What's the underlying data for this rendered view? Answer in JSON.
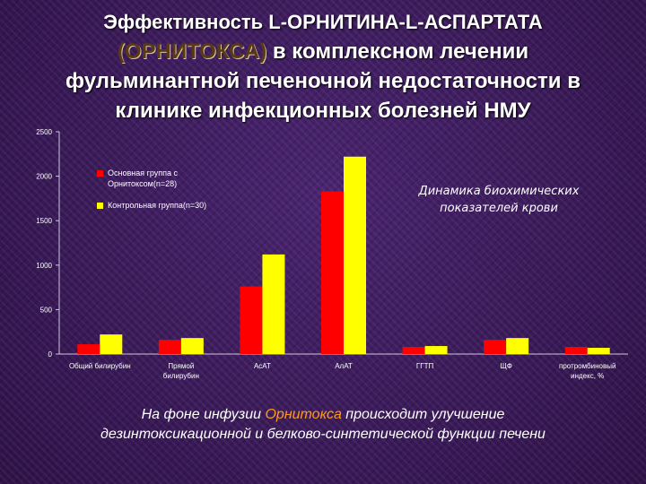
{
  "title": {
    "line1_a": "Эффективность ",
    "line1_b": "L-ОРНИТИНА-L-АСПАРТАТА",
    "line2_highlight": "(ОРНИТОКСА)",
    "line2_rest": " в комплексном лечении",
    "line3": "фульминантной печеночной недостаточности в",
    "line4": "клинике инфекционных болезней НМУ"
  },
  "annotation": {
    "line1": "Динамика биохимических",
    "line2": "показателей крови"
  },
  "footer": {
    "line1_a": "На фоне инфузии ",
    "line1_highlight": "Орнитокса",
    "line1_b": " происходит улучшение",
    "line2": "дезинтоксикационной и белково-синтетической функции печени"
  },
  "colors": {
    "series_main": "#ff0000",
    "series_control": "#ffff00",
    "axis_text": "#ffffff",
    "orange_text": "#ff9a1a"
  },
  "chart_data": {
    "type": "bar",
    "categories": [
      [
        "Общий билирубин"
      ],
      [
        "Прямой",
        "билирубин"
      ],
      [
        "АсАТ"
      ],
      [
        "АлАТ"
      ],
      [
        "ГГТП"
      ],
      [
        "ЩФ"
      ],
      [
        "протромбиновый",
        "индекс, %"
      ]
    ],
    "series": [
      {
        "name": [
          "Основная группа с",
          "Орнитоксом(n=28)"
        ],
        "values": [
          110,
          160,
          760,
          1830,
          80,
          160,
          80
        ]
      },
      {
        "name": [
          "Контрольная группа(n=30)"
        ],
        "values": [
          220,
          180,
          1120,
          2220,
          90,
          180,
          70
        ]
      }
    ],
    "yticks": [
      0,
      500,
      1000,
      1500,
      2000,
      2500
    ],
    "ylim": [
      0,
      2500
    ],
    "legend_position": "top-left"
  }
}
